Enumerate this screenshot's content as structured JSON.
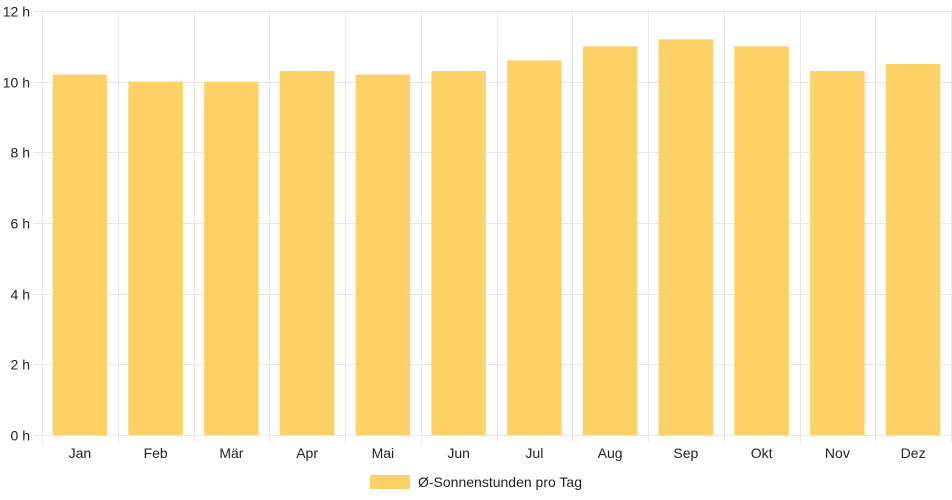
{
  "chart_data": {
    "type": "bar",
    "categories": [
      "Jan",
      "Feb",
      "Mär",
      "Apr",
      "Mai",
      "Jun",
      "Jul",
      "Aug",
      "Sep",
      "Okt",
      "Nov",
      "Dez"
    ],
    "series": [
      {
        "name": "Ø-Sonnenstunden pro Tag",
        "values": [
          10.2,
          10.0,
          10.0,
          10.3,
          10.2,
          10.3,
          10.6,
          11.0,
          11.2,
          11.0,
          10.3,
          10.5
        ],
        "color": "#fed166"
      }
    ],
    "y_ticks": [
      "0 h",
      "2 h",
      "4 h",
      "6 h",
      "8 h",
      "10 h",
      "12 h"
    ],
    "ylim": [
      0,
      12
    ],
    "grid": true,
    "legend_position": "bottom",
    "colors": {
      "grid": "#e6e6e6",
      "text": "#222222",
      "bar": "#fed166"
    }
  }
}
